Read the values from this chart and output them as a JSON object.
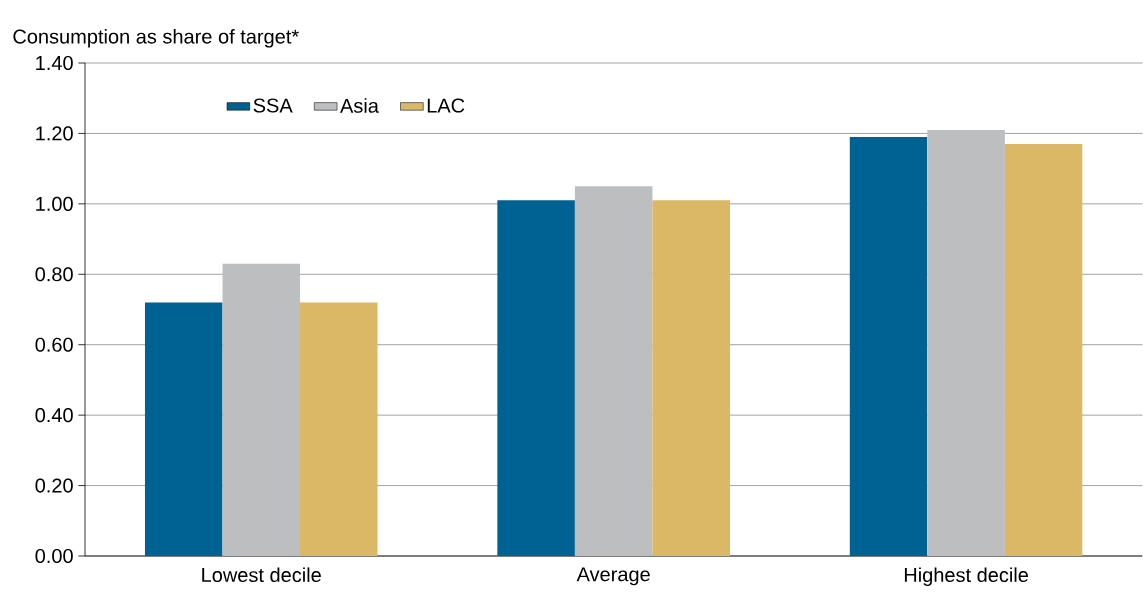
{
  "chart_data": {
    "type": "bar",
    "ylabel": "Consumption as share of target*",
    "categories": [
      "Lowest decile",
      "Average",
      "Highest decile"
    ],
    "series": [
      {
        "name": "SSA",
        "color": "#006193",
        "values": [
          0.72,
          1.01,
          1.19
        ]
      },
      {
        "name": "Asia",
        "color": "#bcbec0",
        "values": [
          0.83,
          1.05,
          1.21
        ]
      },
      {
        "name": "LAC",
        "color": "#dbb865",
        "values": [
          0.72,
          1.01,
          1.17
        ]
      }
    ],
    "ylim": [
      0,
      1.4
    ],
    "yticks": [
      {
        "value": 0,
        "label": "0.00"
      },
      {
        "value": 0.2,
        "label": "0.20"
      },
      {
        "value": 0.4,
        "label": "0.40"
      },
      {
        "value": 0.6,
        "label": "0.60"
      },
      {
        "value": 0.8,
        "label": "0.80"
      },
      {
        "value": 1.0,
        "label": "1.00"
      },
      {
        "value": 1.2,
        "label": "1.20"
      },
      {
        "value": 1.4,
        "label": "1.40"
      }
    ],
    "grid": "y",
    "legend": "top left"
  }
}
